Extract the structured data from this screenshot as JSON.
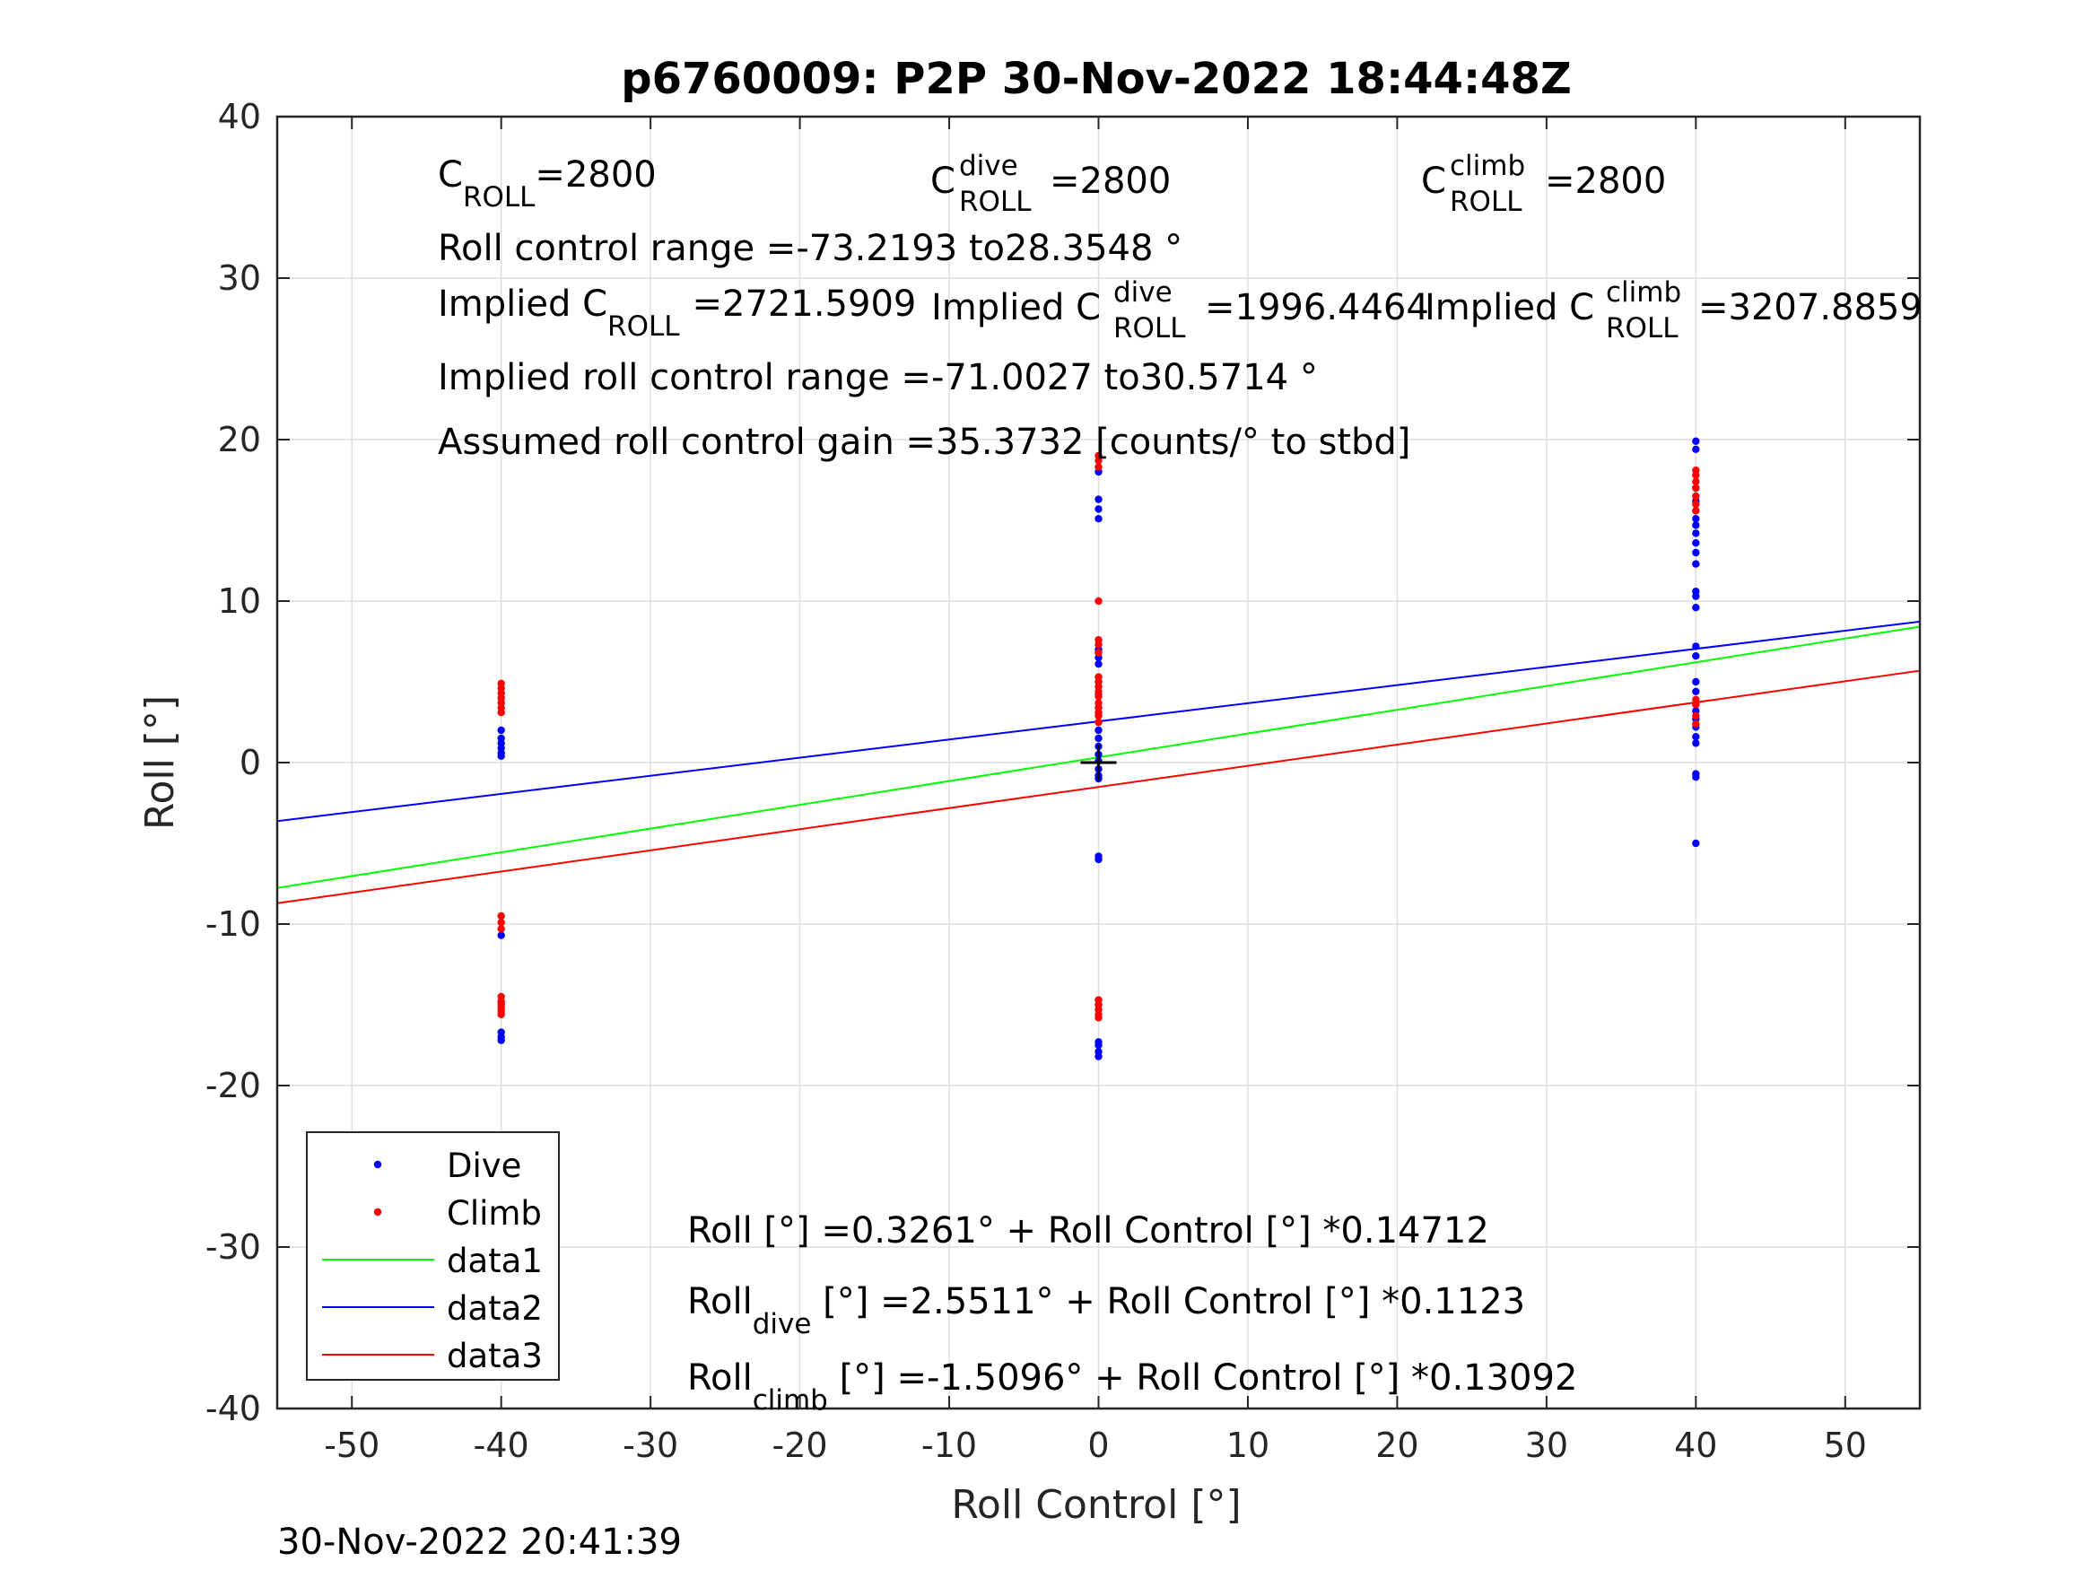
{
  "figure": {
    "title": "p6760009: P2P 30-Nov-2022 18:44:48Z",
    "timestamp": "30-Nov-2022 20:41:39"
  },
  "annotations": {
    "c_roll": {
      "base": "C",
      "sub": "ROLL",
      "value": "=2800"
    },
    "c_roll_dive": {
      "base": "C",
      "sup": "dive",
      "sub": "ROLL",
      "value": "=2800"
    },
    "c_roll_climb": {
      "base": "C",
      "sup": "climb",
      "sub": "ROLL",
      "value": "=2800"
    },
    "roll_control_range": "Roll control range =-73.2193 to28.3548 °",
    "implied_c_roll": {
      "prefix": "Implied C",
      "sub": "ROLL",
      "value": "=2721.5909"
    },
    "implied_c_roll_dive": {
      "prefix": "Implied C",
      "sup": "dive",
      "sub": "ROLL",
      "value": "=1996.4464"
    },
    "implied_c_roll_climb": {
      "prefix": "Implied C",
      "sup": "climb",
      "sub": "ROLL",
      "value": "=3207.8859"
    },
    "implied_range": "Implied roll control range =-71.0027 to30.5714 °",
    "gain": "Assumed roll control gain =35.3732 [counts/° to stbd]",
    "fit_all": "Roll [°] =0.3261° + Roll Control [°] *0.14712",
    "fit_dive": {
      "base": "Roll",
      "sub": "dive",
      "rest": " [°] =2.5511° + Roll Control [°] *0.1123"
    },
    "fit_climb": {
      "base": "Roll",
      "sub": "climb",
      "rest": " [°] =-1.5096° + Roll Control [°] *0.13092"
    }
  },
  "chart_data": {
    "type": "scatter",
    "title": "p6760009: P2P 30-Nov-2022 18:44:48Z",
    "xlabel": "Roll Control [°]",
    "ylabel": "Roll [°]",
    "xlim": [
      -55,
      55
    ],
    "ylim": [
      -40,
      40
    ],
    "xticks": [
      -50,
      -40,
      -30,
      -20,
      -10,
      0,
      10,
      20,
      30,
      40,
      50
    ],
    "yticks": [
      -40,
      -30,
      -20,
      -10,
      0,
      10,
      20,
      30,
      40
    ],
    "grid": true,
    "legend_position": "bottom-left",
    "colors": {
      "dive": "#0000ff",
      "climb": "#ff0000",
      "data1": "#00ff00",
      "data2": "#0000ff",
      "data3": "#ff0000",
      "center": "#000000"
    },
    "series": [
      {
        "name": "Dive",
        "kind": "points",
        "color": "#0000ff",
        "x": [
          -40,
          -40,
          -40,
          -40,
          -40,
          -40,
          -40,
          -40,
          -40,
          -40,
          -40,
          0,
          0,
          0,
          0,
          0,
          0,
          0,
          0,
          0,
          0,
          0,
          0,
          0,
          0,
          0,
          0,
          0,
          0,
          0,
          0,
          0,
          0,
          0,
          0,
          0,
          0,
          40,
          40,
          40,
          40,
          40,
          40,
          40,
          40,
          40,
          40,
          40,
          40,
          40,
          40,
          40,
          40,
          40,
          40,
          40,
          40,
          40,
          40,
          40,
          40,
          40,
          40,
          40
        ],
        "y": [
          2.0,
          1.5,
          1.2,
          0.9,
          0.6,
          0.4,
          -10.7,
          -14.8,
          -16.7,
          -17.0,
          -17.2,
          18.0,
          16.3,
          15.7,
          15.1,
          7.0,
          6.5,
          6.1,
          5.0,
          4.2,
          3.4,
          2.5,
          2.0,
          1.5,
          1.0,
          0.5,
          0.1,
          -0.4,
          -0.8,
          -1.0,
          -5.8,
          -6.0,
          -17.3,
          -17.5,
          -17.9,
          -18.2,
          -15.0,
          19.9,
          19.4,
          17.0,
          16.2,
          15.6,
          15.1,
          14.7,
          14.2,
          13.6,
          13.0,
          12.3,
          10.6,
          10.3,
          9.6,
          7.2,
          6.6,
          5.0,
          4.4,
          3.6,
          3.2,
          2.7,
          2.2,
          1.6,
          1.2,
          -0.7,
          -0.9,
          -5.0
        ]
      },
      {
        "name": "Climb",
        "kind": "points",
        "color": "#ff0000",
        "x": [
          -40,
          -40,
          -40,
          -40,
          -40,
          -40,
          -40,
          -40,
          -40,
          -40,
          -40,
          -40,
          -40,
          -40,
          -40,
          -40,
          0,
          0,
          0,
          0,
          0,
          0,
          0,
          0,
          0,
          0,
          0,
          0,
          0,
          0,
          0,
          0,
          0,
          0,
          0,
          0,
          0,
          0,
          40,
          40,
          40,
          40,
          40,
          40,
          40,
          40,
          40,
          40,
          40
        ],
        "y": [
          4.9,
          4.6,
          4.3,
          4.0,
          3.7,
          3.4,
          3.1,
          -9.5,
          -9.9,
          -10.3,
          -14.5,
          -14.8,
          -15.0,
          -15.2,
          -15.4,
          -15.6,
          19.0,
          18.7,
          18.3,
          10.0,
          7.6,
          7.3,
          6.8,
          5.3,
          5.0,
          4.7,
          4.4,
          4.1,
          3.7,
          3.4,
          3.1,
          -14.7,
          -15.0,
          -15.3,
          -15.6,
          -15.8,
          2.9,
          2.5,
          18.1,
          17.8,
          17.4,
          17.0,
          16.5,
          16.0,
          15.6,
          3.9,
          3.6,
          2.9,
          2.4
        ]
      },
      {
        "name": "data1",
        "kind": "line",
        "color": "#00ff00",
        "intercept": 0.3261,
        "slope": 0.14712
      },
      {
        "name": "data2",
        "kind": "line",
        "color": "#0000ff",
        "intercept": 2.5511,
        "slope": 0.1123
      },
      {
        "name": "data3",
        "kind": "line",
        "color": "#ff0000",
        "intercept": -1.5096,
        "slope": 0.13092
      }
    ],
    "center_marker": {
      "x": 0,
      "y": 0
    },
    "legend": [
      {
        "label": "Dive",
        "kind": "point",
        "color": "#0000ff"
      },
      {
        "label": "Climb",
        "kind": "point",
        "color": "#ff0000"
      },
      {
        "label": "data1",
        "kind": "line",
        "color": "#00ff00"
      },
      {
        "label": "data2",
        "kind": "line",
        "color": "#0000ff"
      },
      {
        "label": "data3",
        "kind": "line",
        "color": "#ff0000"
      }
    ]
  }
}
